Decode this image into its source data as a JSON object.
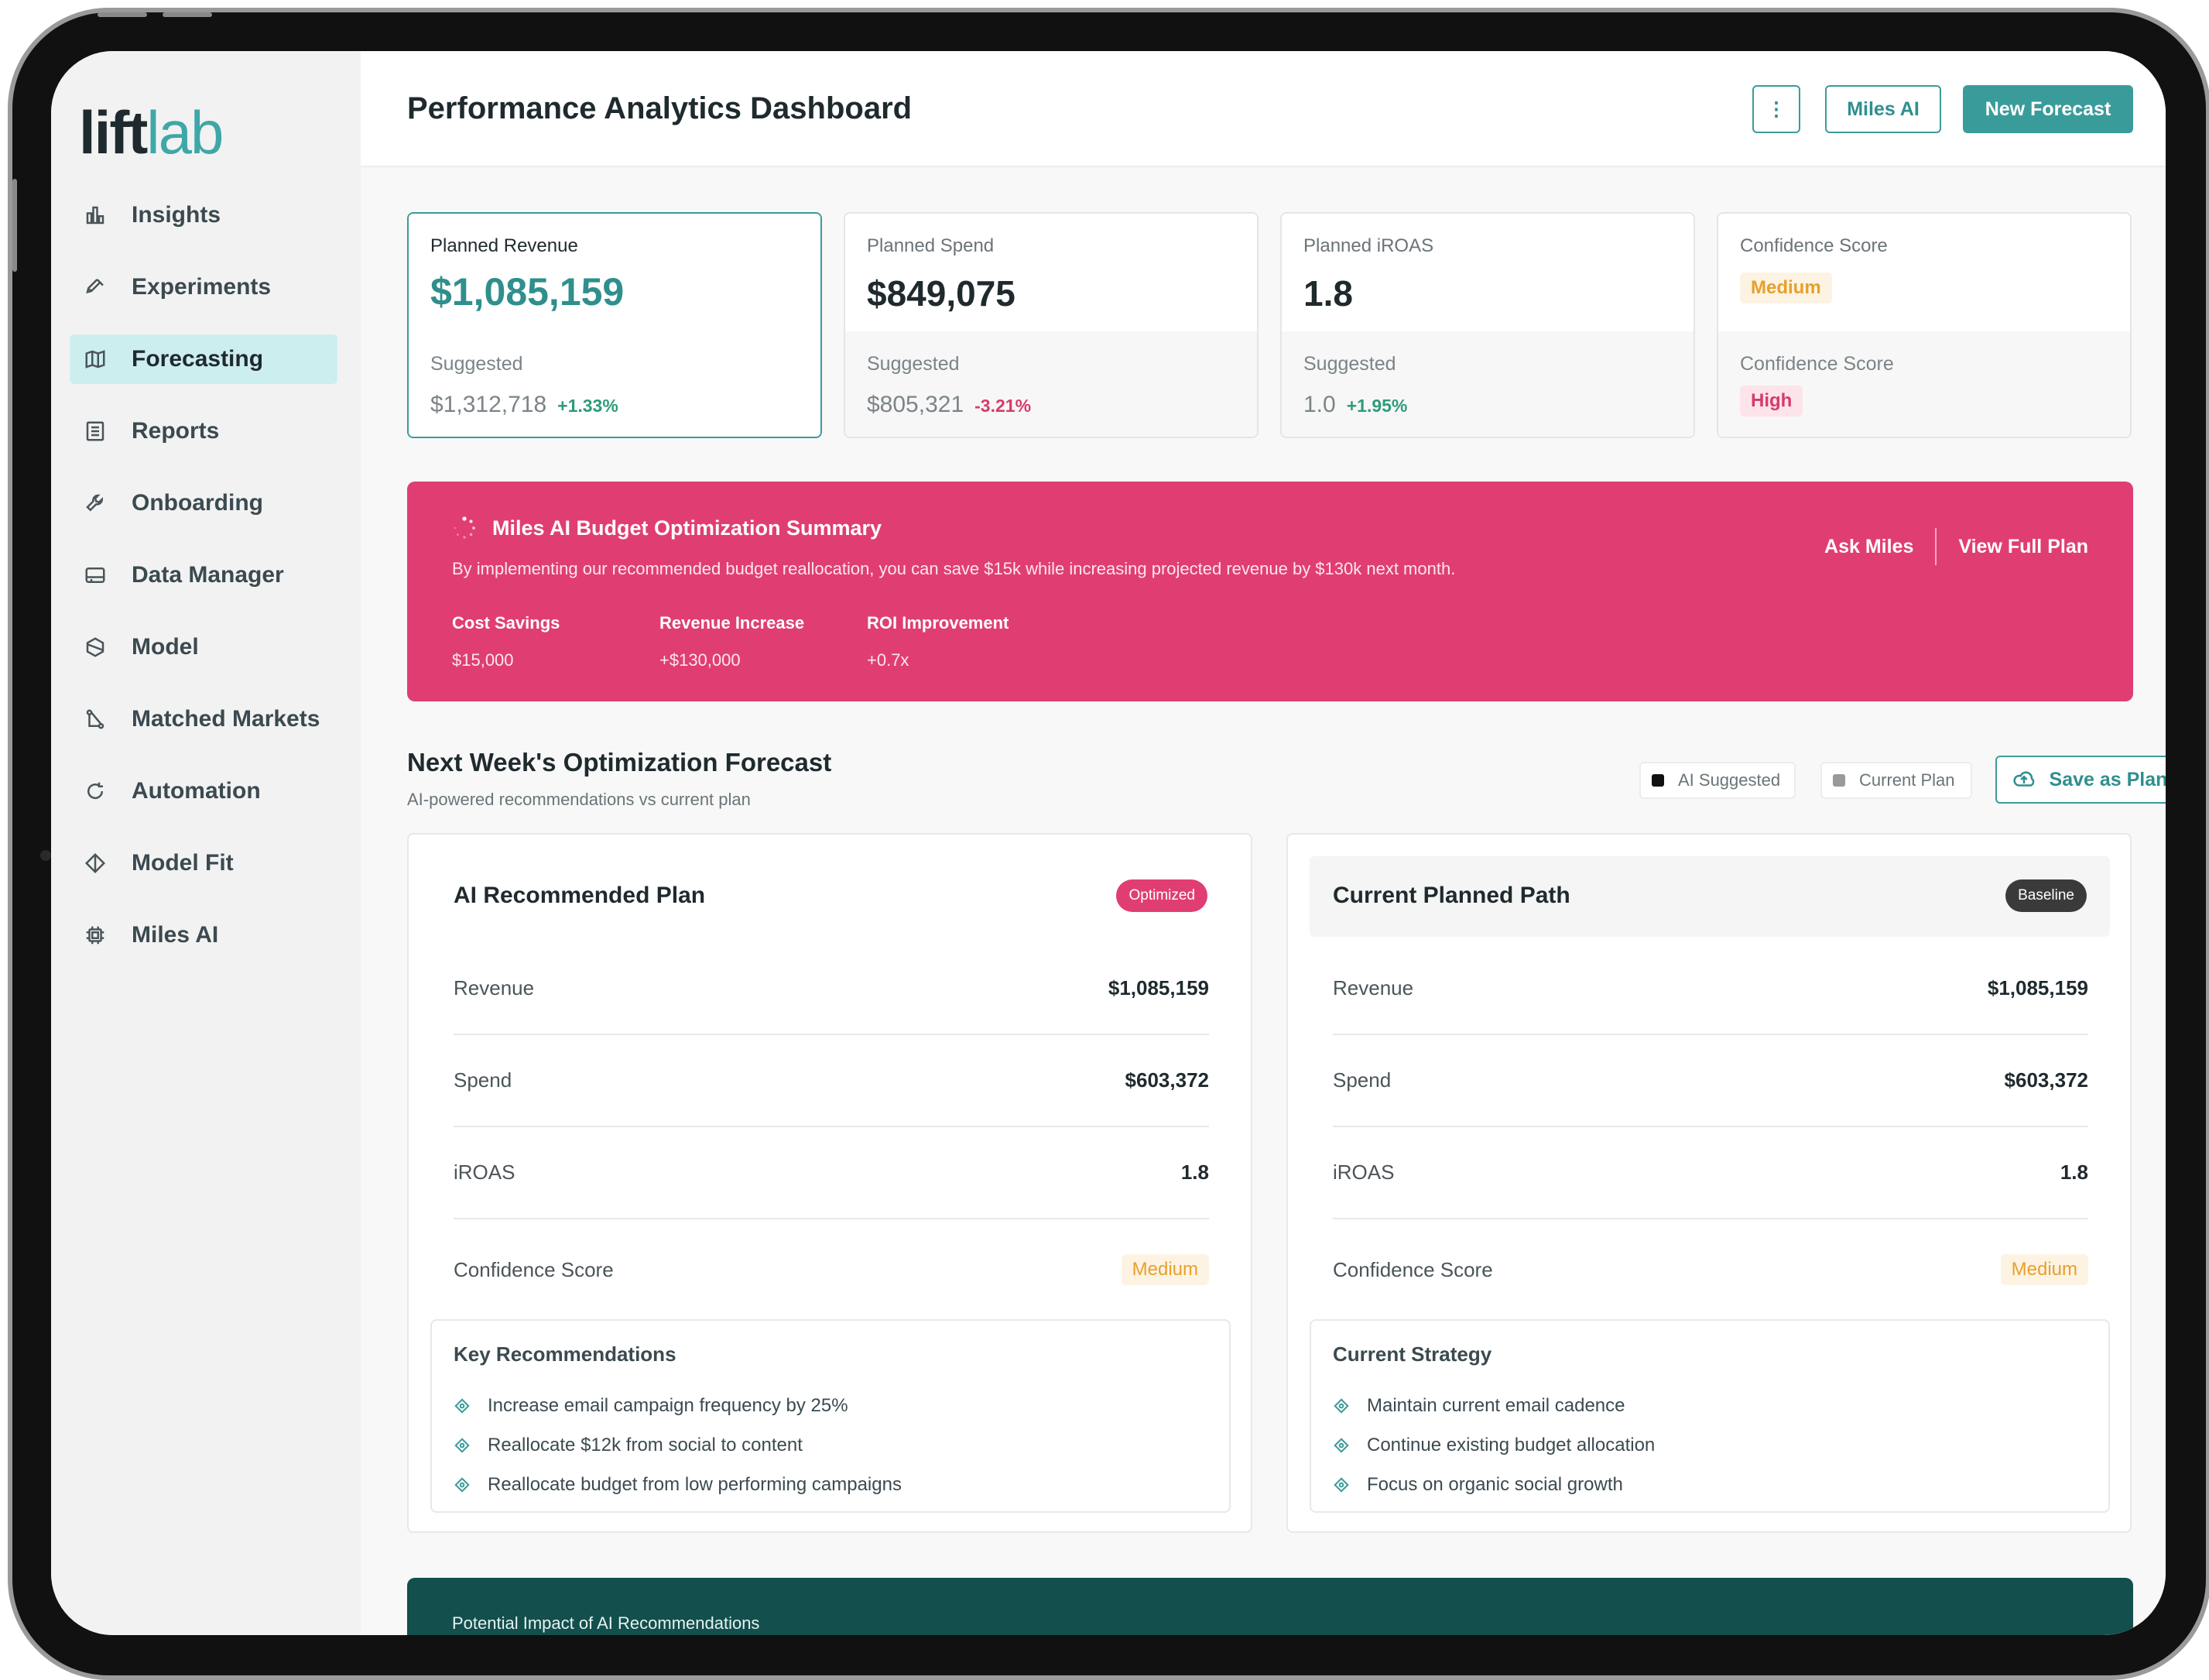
{
  "brand": {
    "logo_part1": "lift",
    "logo_part2": "lab"
  },
  "sidebar": {
    "items": [
      {
        "label": "Insights",
        "icon": "bar-chart-icon",
        "active": false
      },
      {
        "label": "Experiments",
        "icon": "pipette-icon",
        "active": false
      },
      {
        "label": "Forecasting",
        "icon": "map-icon",
        "active": true
      },
      {
        "label": "Reports",
        "icon": "report-icon",
        "active": false
      },
      {
        "label": "Onboarding",
        "icon": "wrench-icon",
        "active": false
      },
      {
        "label": "Data Manager",
        "icon": "drive-icon",
        "active": false
      },
      {
        "label": "Model",
        "icon": "hexagon-icon",
        "active": false
      },
      {
        "label": "Matched Markets",
        "icon": "route-icon",
        "active": false
      },
      {
        "label": "Automation",
        "icon": "refresh-icon",
        "active": false
      },
      {
        "label": "Model Fit",
        "icon": "diamond-icon",
        "active": false
      },
      {
        "label": "Miles AI",
        "icon": "chip-icon",
        "active": false
      }
    ]
  },
  "header": {
    "title": "Performance Analytics Dashboard",
    "more_label": "⋮",
    "miles_label": "Miles AI",
    "new_forecast_label": "New Forecast"
  },
  "kpis": {
    "revenue": {
      "label": "Planned Revenue",
      "value": "$1,085,159",
      "sub_label": "Suggested",
      "sub_value": "$1,312,718",
      "delta": "+1.33%"
    },
    "spend": {
      "label": "Planned Spend",
      "value": "$849,075",
      "sub_label": "Suggested",
      "sub_value": "$805,321",
      "delta": "-3.21%"
    },
    "iroas": {
      "label": "Planned iROAS",
      "value": "1.8",
      "sub_label": "Suggested",
      "sub_value": "1.0",
      "delta": "+1.95%"
    },
    "confidence": {
      "label": "Confidence Score",
      "value": "Medium",
      "sub_label": "Confidence Score",
      "sub_value": "High"
    }
  },
  "banner": {
    "title": "Miles AI Budget Optimization Summary",
    "text": "By implementing our recommended budget reallocation, you can save $15k while increasing projected revenue by $130k next month.",
    "stats": [
      {
        "label": "Cost Savings",
        "value": "$15,000"
      },
      {
        "label": "Revenue Increase",
        "value": "+$130,000"
      },
      {
        "label": "ROI Improvement",
        "value": "+0.7x"
      }
    ],
    "ask_label": "Ask Miles",
    "view_label": "View Full Plan",
    "color": "#e03e73"
  },
  "forecast": {
    "title": "Next Week's Optimization Forecast",
    "subtitle": "AI-powered recommendations vs current plan",
    "legend_ai": "AI Suggested",
    "legend_current": "Current Plan",
    "save_label": "Save as Plan",
    "ai_plan": {
      "name": "AI Recommended Plan",
      "badge": "Optimized",
      "rows": [
        {
          "key": "Revenue",
          "value": "$1,085,159"
        },
        {
          "key": "Spend",
          "value": "$603,372"
        },
        {
          "key": "iROAS",
          "value": "1.8"
        },
        {
          "key": "Confidence Score",
          "value": "Medium"
        }
      ],
      "box_title": "Key Recommendations",
      "items": [
        "Increase email campaign frequency by 25%",
        "Reallocate $12k from social to content",
        "Reallocate budget from low performing campaigns"
      ]
    },
    "current_plan": {
      "name": "Current Planned Path",
      "badge": "Baseline",
      "rows": [
        {
          "key": "Revenue",
          "value": "$1,085,159"
        },
        {
          "key": "Spend",
          "value": "$603,372"
        },
        {
          "key": "iROAS",
          "value": "1.8"
        },
        {
          "key": "Confidence Score",
          "value": "Medium"
        }
      ],
      "box_title": "Current Strategy",
      "items": [
        "Maintain current email cadence",
        "Continue existing budget allocation",
        "Focus on organic social growth"
      ]
    }
  },
  "impact": {
    "title": "Potential Impact of AI Recommendations"
  }
}
